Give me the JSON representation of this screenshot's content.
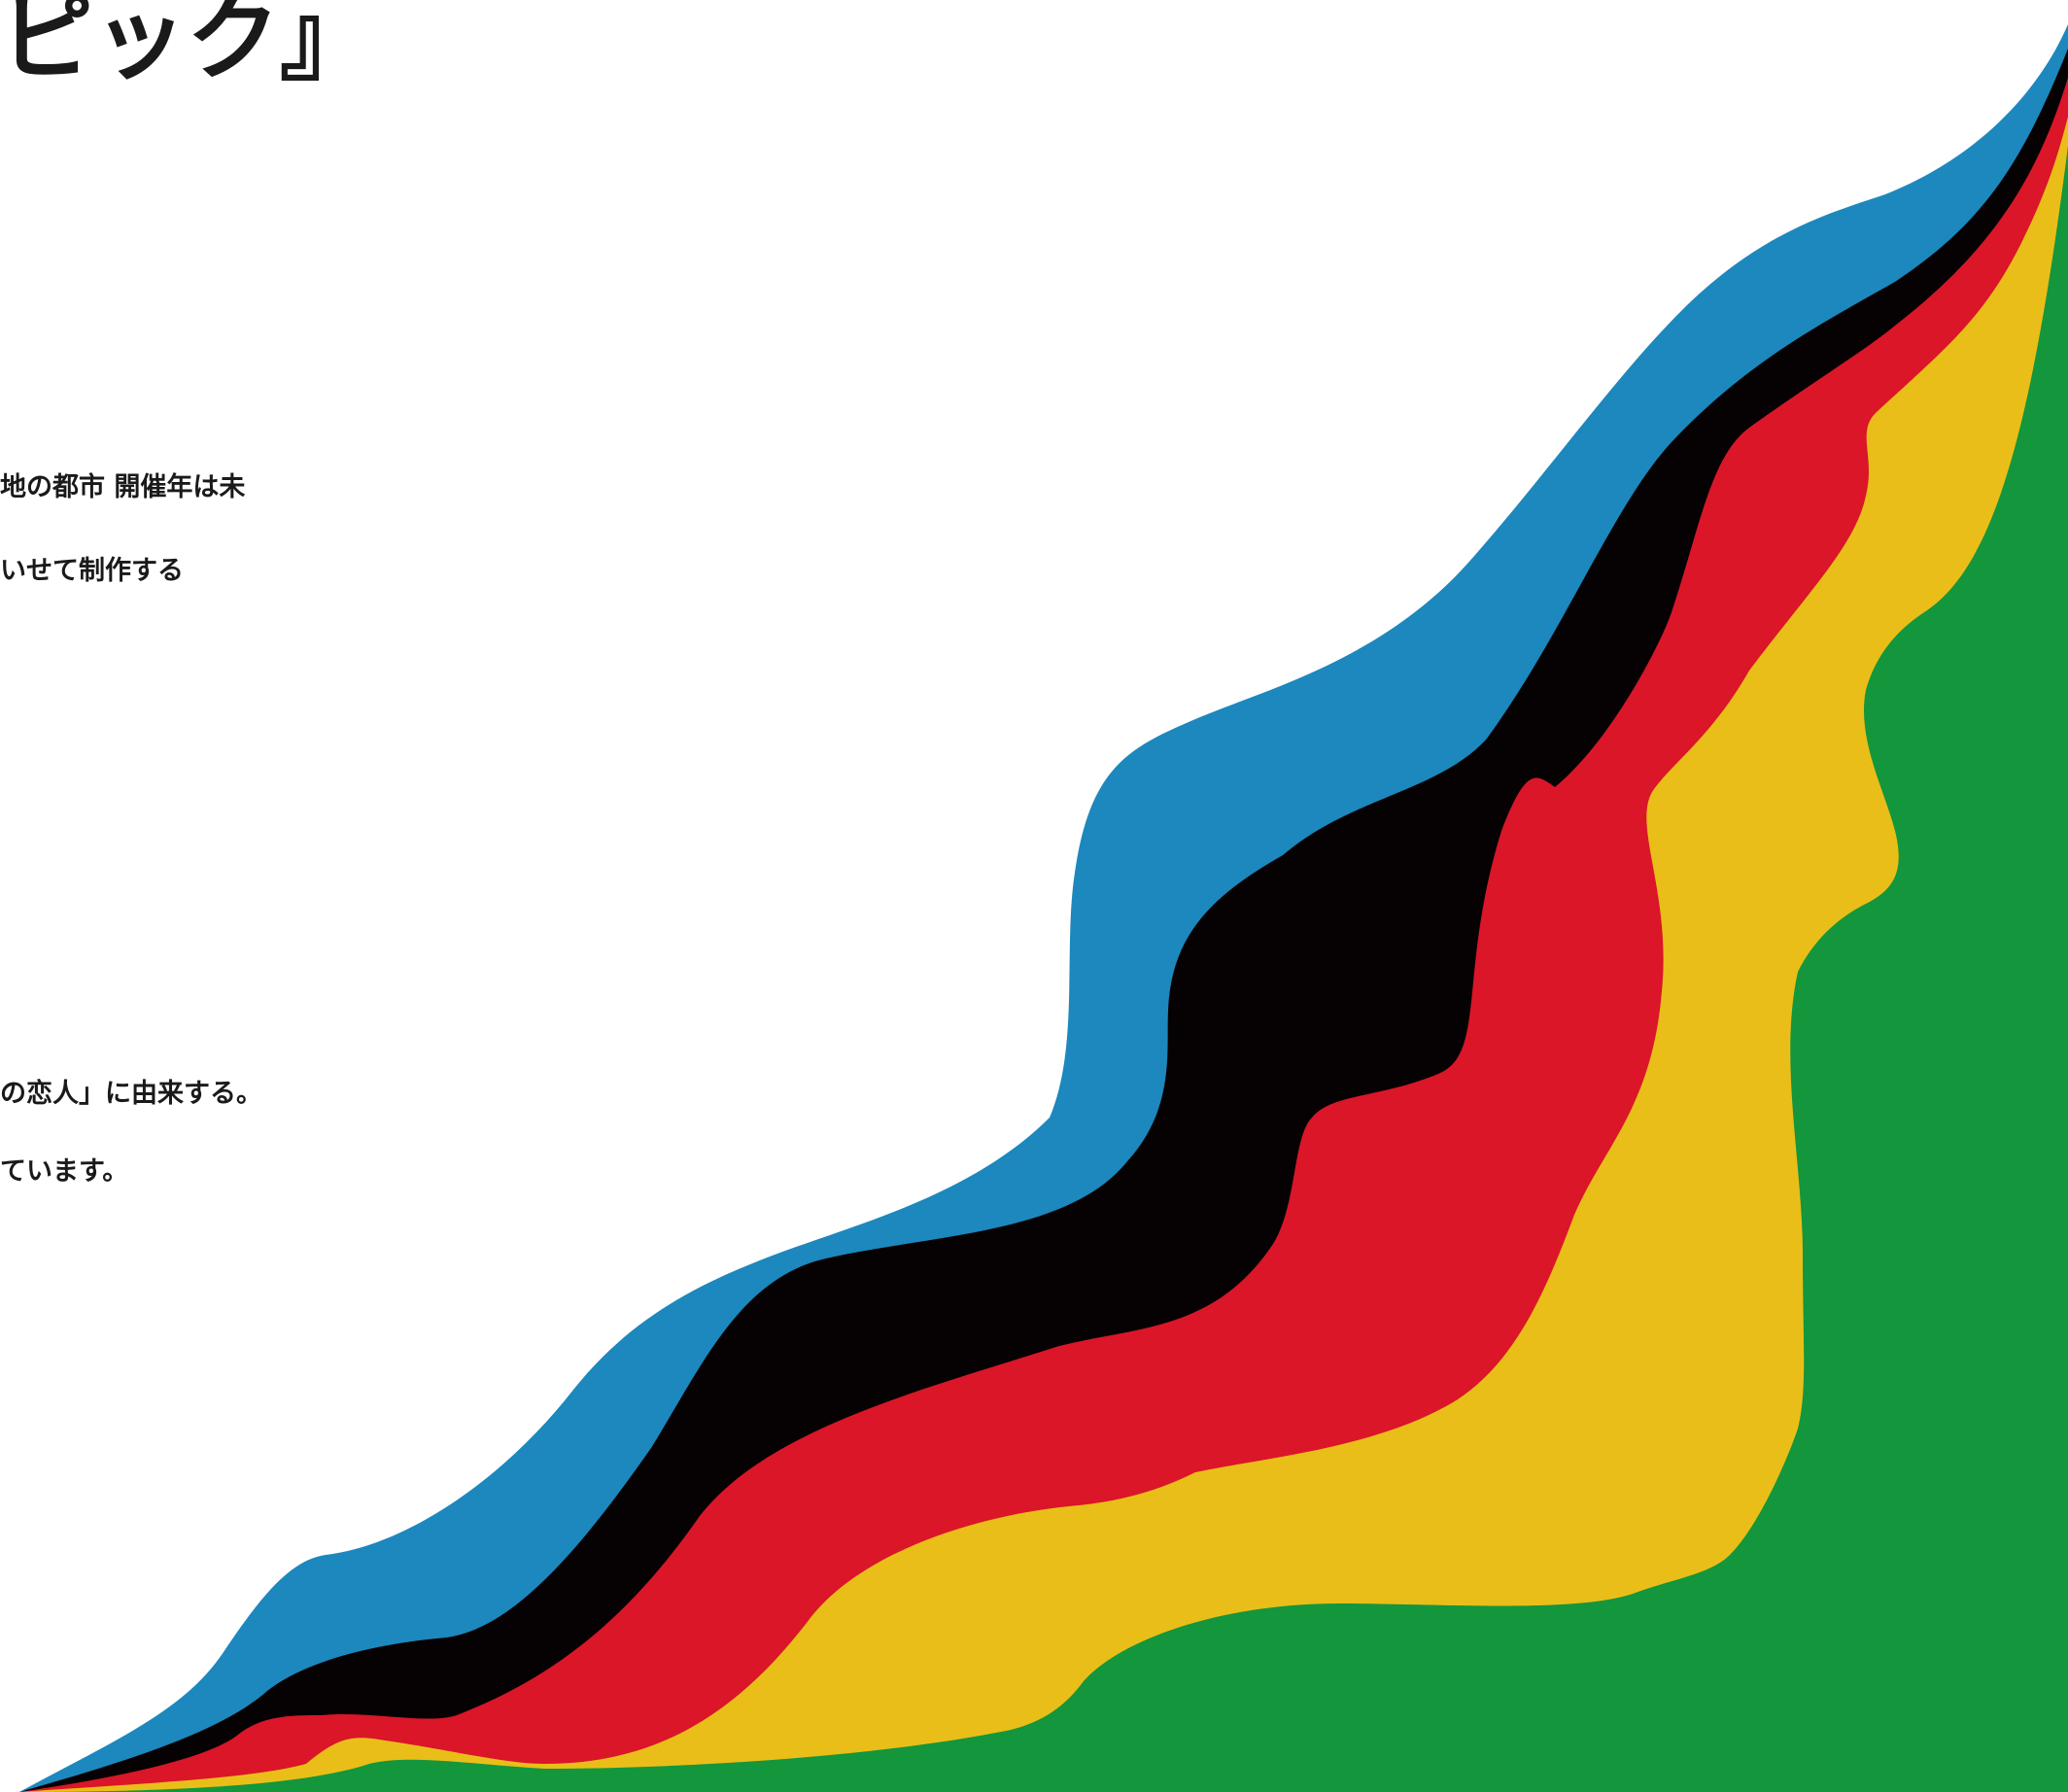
{
  "title": "ピック』",
  "text_lines": [
    "地の都市 開催年は未",
    "いせて制作する",
    "の恋人」に由来する。",
    "ています。"
  ],
  "colors": {
    "blue": "#1c88bd",
    "black": "#060203",
    "red": "#da1628",
    "yellow": "#eabe19",
    "green": "#13963c"
  }
}
